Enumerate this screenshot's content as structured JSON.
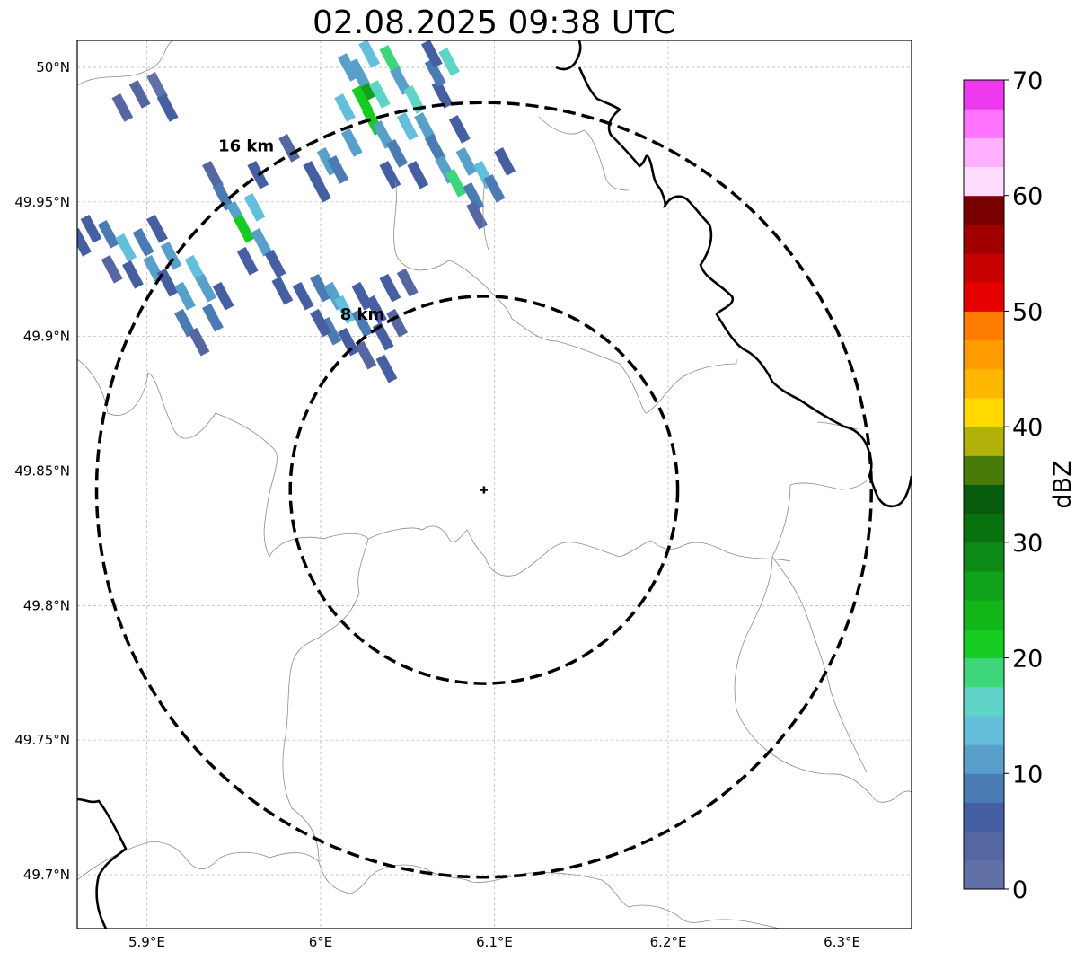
{
  "title": "02.08.2025 09:38 UTC",
  "map": {
    "lon_range": [
      5.86,
      6.34
    ],
    "lat_range": [
      49.68,
      50.01
    ],
    "x_ticks": [
      {
        "value": 5.9,
        "label": "5.9°E"
      },
      {
        "value": 6.0,
        "label": "6°E"
      },
      {
        "value": 6.1,
        "label": "6.1°E"
      },
      {
        "value": 6.2,
        "label": "6.2°E"
      },
      {
        "value": 6.3,
        "label": "6.3°E"
      }
    ],
    "y_ticks": [
      {
        "value": 50.0,
        "label": "50°N"
      },
      {
        "value": 49.95,
        "label": "49.95°N"
      },
      {
        "value": 49.9,
        "label": "49.9°N"
      },
      {
        "value": 49.85,
        "label": "49.85°N"
      },
      {
        "value": 49.8,
        "label": "49.8°N"
      },
      {
        "value": 49.75,
        "label": "49.75°N"
      },
      {
        "value": 49.7,
        "label": "49.7°N"
      }
    ],
    "grid": true,
    "radar_site": {
      "lon": 6.094,
      "lat": 49.843
    },
    "rings": [
      {
        "range_km": 8,
        "label": "8 km"
      },
      {
        "range_km": 16,
        "label": "16 km"
      }
    ]
  },
  "colorbar": {
    "label": "dBZ",
    "min": 0,
    "max": 70,
    "step": 2.5,
    "ticks": [
      {
        "value": 0,
        "label": "0"
      },
      {
        "value": 10,
        "label": "10"
      },
      {
        "value": 20,
        "label": "20"
      },
      {
        "value": 30,
        "label": "30"
      },
      {
        "value": 40,
        "label": "40"
      },
      {
        "value": 50,
        "label": "50"
      },
      {
        "value": 60,
        "label": "60"
      },
      {
        "value": 70,
        "label": "70"
      }
    ],
    "colors": [
      "#6170a6",
      "#5566a1",
      "#465fa2",
      "#4a7bb2",
      "#58a0c9",
      "#64bfdc",
      "#5fd4c6",
      "#3ed67a",
      "#16cc21",
      "#13b619",
      "#10a21a",
      "#0c8a15",
      "#08720f",
      "#075c0d",
      "#477a07",
      "#b0b20a",
      "#ffd900",
      "#ffb600",
      "#ff9c00",
      "#ff7d00",
      "#e60000",
      "#c70000",
      "#a00000",
      "#780000",
      "#ffddff",
      "#ffb0ff",
      "#ff73ff",
      "#ee3aee"
    ]
  },
  "echoes": [
    {
      "lon": 5.886,
      "lat": 49.985,
      "dbz": 3
    },
    {
      "lon": 5.896,
      "lat": 49.99,
      "dbz": 4
    },
    {
      "lon": 5.906,
      "lat": 49.993,
      "dbz": 2
    },
    {
      "lon": 5.912,
      "lat": 49.985,
      "dbz": 5
    },
    {
      "lon": 5.868,
      "lat": 49.94,
      "dbz": 6
    },
    {
      "lon": 5.878,
      "lat": 49.938,
      "dbz": 8
    },
    {
      "lon": 5.888,
      "lat": 49.933,
      "dbz": 13
    },
    {
      "lon": 5.898,
      "lat": 49.935,
      "dbz": 9
    },
    {
      "lon": 5.906,
      "lat": 49.94,
      "dbz": 5
    },
    {
      "lon": 5.88,
      "lat": 49.925,
      "dbz": 4
    },
    {
      "lon": 5.892,
      "lat": 49.923,
      "dbz": 7
    },
    {
      "lon": 5.904,
      "lat": 49.925,
      "dbz": 12
    },
    {
      "lon": 5.914,
      "lat": 49.93,
      "dbz": 10
    },
    {
      "lon": 5.862,
      "lat": 49.935,
      "dbz": 5
    },
    {
      "lon": 5.912,
      "lat": 49.92,
      "dbz": 6
    },
    {
      "lon": 5.922,
      "lat": 49.915,
      "dbz": 11
    },
    {
      "lon": 5.928,
      "lat": 49.925,
      "dbz": 14
    },
    {
      "lon": 5.934,
      "lat": 49.918,
      "dbz": 12
    },
    {
      "lon": 5.922,
      "lat": 49.905,
      "dbz": 8
    },
    {
      "lon": 5.938,
      "lat": 49.907,
      "dbz": 9
    },
    {
      "lon": 5.944,
      "lat": 49.915,
      "dbz": 6
    },
    {
      "lon": 5.93,
      "lat": 49.898,
      "dbz": 4
    },
    {
      "lon": 5.938,
      "lat": 49.96,
      "dbz": 4
    },
    {
      "lon": 5.944,
      "lat": 49.952,
      "dbz": 9
    },
    {
      "lon": 5.952,
      "lat": 49.945,
      "dbz": 12
    },
    {
      "lon": 5.956,
      "lat": 49.94,
      "dbz": 20
    },
    {
      "lon": 5.962,
      "lat": 49.948,
      "dbz": 14
    },
    {
      "lon": 5.966,
      "lat": 49.935,
      "dbz": 10
    },
    {
      "lon": 5.974,
      "lat": 49.927,
      "dbz": 7
    },
    {
      "lon": 5.958,
      "lat": 49.928,
      "dbz": 6
    },
    {
      "lon": 5.978,
      "lat": 49.917,
      "dbz": 5
    },
    {
      "lon": 5.964,
      "lat": 49.96,
      "dbz": 6
    },
    {
      "lon": 5.982,
      "lat": 49.97,
      "dbz": 3
    },
    {
      "lon": 5.99,
      "lat": 49.915,
      "dbz": 6
    },
    {
      "lon": 6.0,
      "lat": 49.918,
      "dbz": 9
    },
    {
      "lon": 6.008,
      "lat": 49.915,
      "dbz": 11
    },
    {
      "lon": 6.014,
      "lat": 49.91,
      "dbz": 13
    },
    {
      "lon": 6.006,
      "lat": 49.902,
      "dbz": 8
    },
    {
      "lon": 6.016,
      "lat": 49.898,
      "dbz": 6
    },
    {
      "lon": 6.024,
      "lat": 49.905,
      "dbz": 9
    },
    {
      "lon": 6.024,
      "lat": 49.915,
      "dbz": 5
    },
    {
      "lon": 6.032,
      "lat": 49.91,
      "dbz": 7
    },
    {
      "lon": 6.036,
      "lat": 49.9,
      "dbz": 6
    },
    {
      "lon": 6.026,
      "lat": 49.893,
      "dbz": 4
    },
    {
      "lon": 6.038,
      "lat": 49.888,
      "dbz": 5
    },
    {
      "lon": 6.044,
      "lat": 49.905,
      "dbz": 4
    },
    {
      "lon": 6.04,
      "lat": 49.918,
      "dbz": 5
    },
    {
      "lon": 6.05,
      "lat": 49.92,
      "dbz": 3
    },
    {
      "lon": 6.0,
      "lat": 49.905,
      "dbz": 5
    },
    {
      "lon": 5.996,
      "lat": 49.96,
      "dbz": 5
    },
    {
      "lon": 6.004,
      "lat": 49.965,
      "dbz": 10
    },
    {
      "lon": 6.0,
      "lat": 49.955,
      "dbz": 6
    },
    {
      "lon": 6.01,
      "lat": 49.962,
      "dbz": 8
    },
    {
      "lon": 6.018,
      "lat": 49.972,
      "dbz": 12
    },
    {
      "lon": 6.014,
      "lat": 49.985,
      "dbz": 14
    },
    {
      "lon": 6.024,
      "lat": 49.988,
      "dbz": 20
    },
    {
      "lon": 6.03,
      "lat": 49.98,
      "dbz": 22
    },
    {
      "lon": 6.026,
      "lat": 49.993,
      "dbz": 25
    },
    {
      "lon": 6.034,
      "lat": 49.99,
      "dbz": 16
    },
    {
      "lon": 6.036,
      "lat": 49.975,
      "dbz": 11
    },
    {
      "lon": 6.022,
      "lat": 49.998,
      "dbz": 12
    },
    {
      "lon": 6.028,
      "lat": 50.005,
      "dbz": 14
    },
    {
      "lon": 6.016,
      "lat": 50.0,
      "dbz": 10
    },
    {
      "lon": 6.04,
      "lat": 50.003,
      "dbz": 18
    },
    {
      "lon": 6.046,
      "lat": 49.995,
      "dbz": 12
    },
    {
      "lon": 6.054,
      "lat": 49.988,
      "dbz": 17
    },
    {
      "lon": 6.05,
      "lat": 49.978,
      "dbz": 13
    },
    {
      "lon": 6.044,
      "lat": 49.968,
      "dbz": 9
    },
    {
      "lon": 6.06,
      "lat": 49.978,
      "dbz": 10
    },
    {
      "lon": 6.066,
      "lat": 49.97,
      "dbz": 8
    },
    {
      "lon": 6.072,
      "lat": 49.962,
      "dbz": 12
    },
    {
      "lon": 6.078,
      "lat": 49.957,
      "dbz": 19
    },
    {
      "lon": 6.084,
      "lat": 49.965,
      "dbz": 11
    },
    {
      "lon": 6.088,
      "lat": 49.952,
      "dbz": 9
    },
    {
      "lon": 6.094,
      "lat": 49.96,
      "dbz": 14
    },
    {
      "lon": 6.1,
      "lat": 49.955,
      "dbz": 8
    },
    {
      "lon": 6.08,
      "lat": 49.977,
      "dbz": 7
    },
    {
      "lon": 6.07,
      "lat": 49.99,
      "dbz": 6
    },
    {
      "lon": 6.066,
      "lat": 49.998,
      "dbz": 9
    },
    {
      "lon": 6.074,
      "lat": 50.002,
      "dbz": 16
    },
    {
      "lon": 6.064,
      "lat": 50.005,
      "dbz": 5
    },
    {
      "lon": 6.056,
      "lat": 49.96,
      "dbz": 6
    },
    {
      "lon": 6.04,
      "lat": 49.96,
      "dbz": 5
    },
    {
      "lon": 6.106,
      "lat": 49.965,
      "dbz": 5
    },
    {
      "lon": 6.09,
      "lat": 49.945,
      "dbz": 4
    }
  ]
}
